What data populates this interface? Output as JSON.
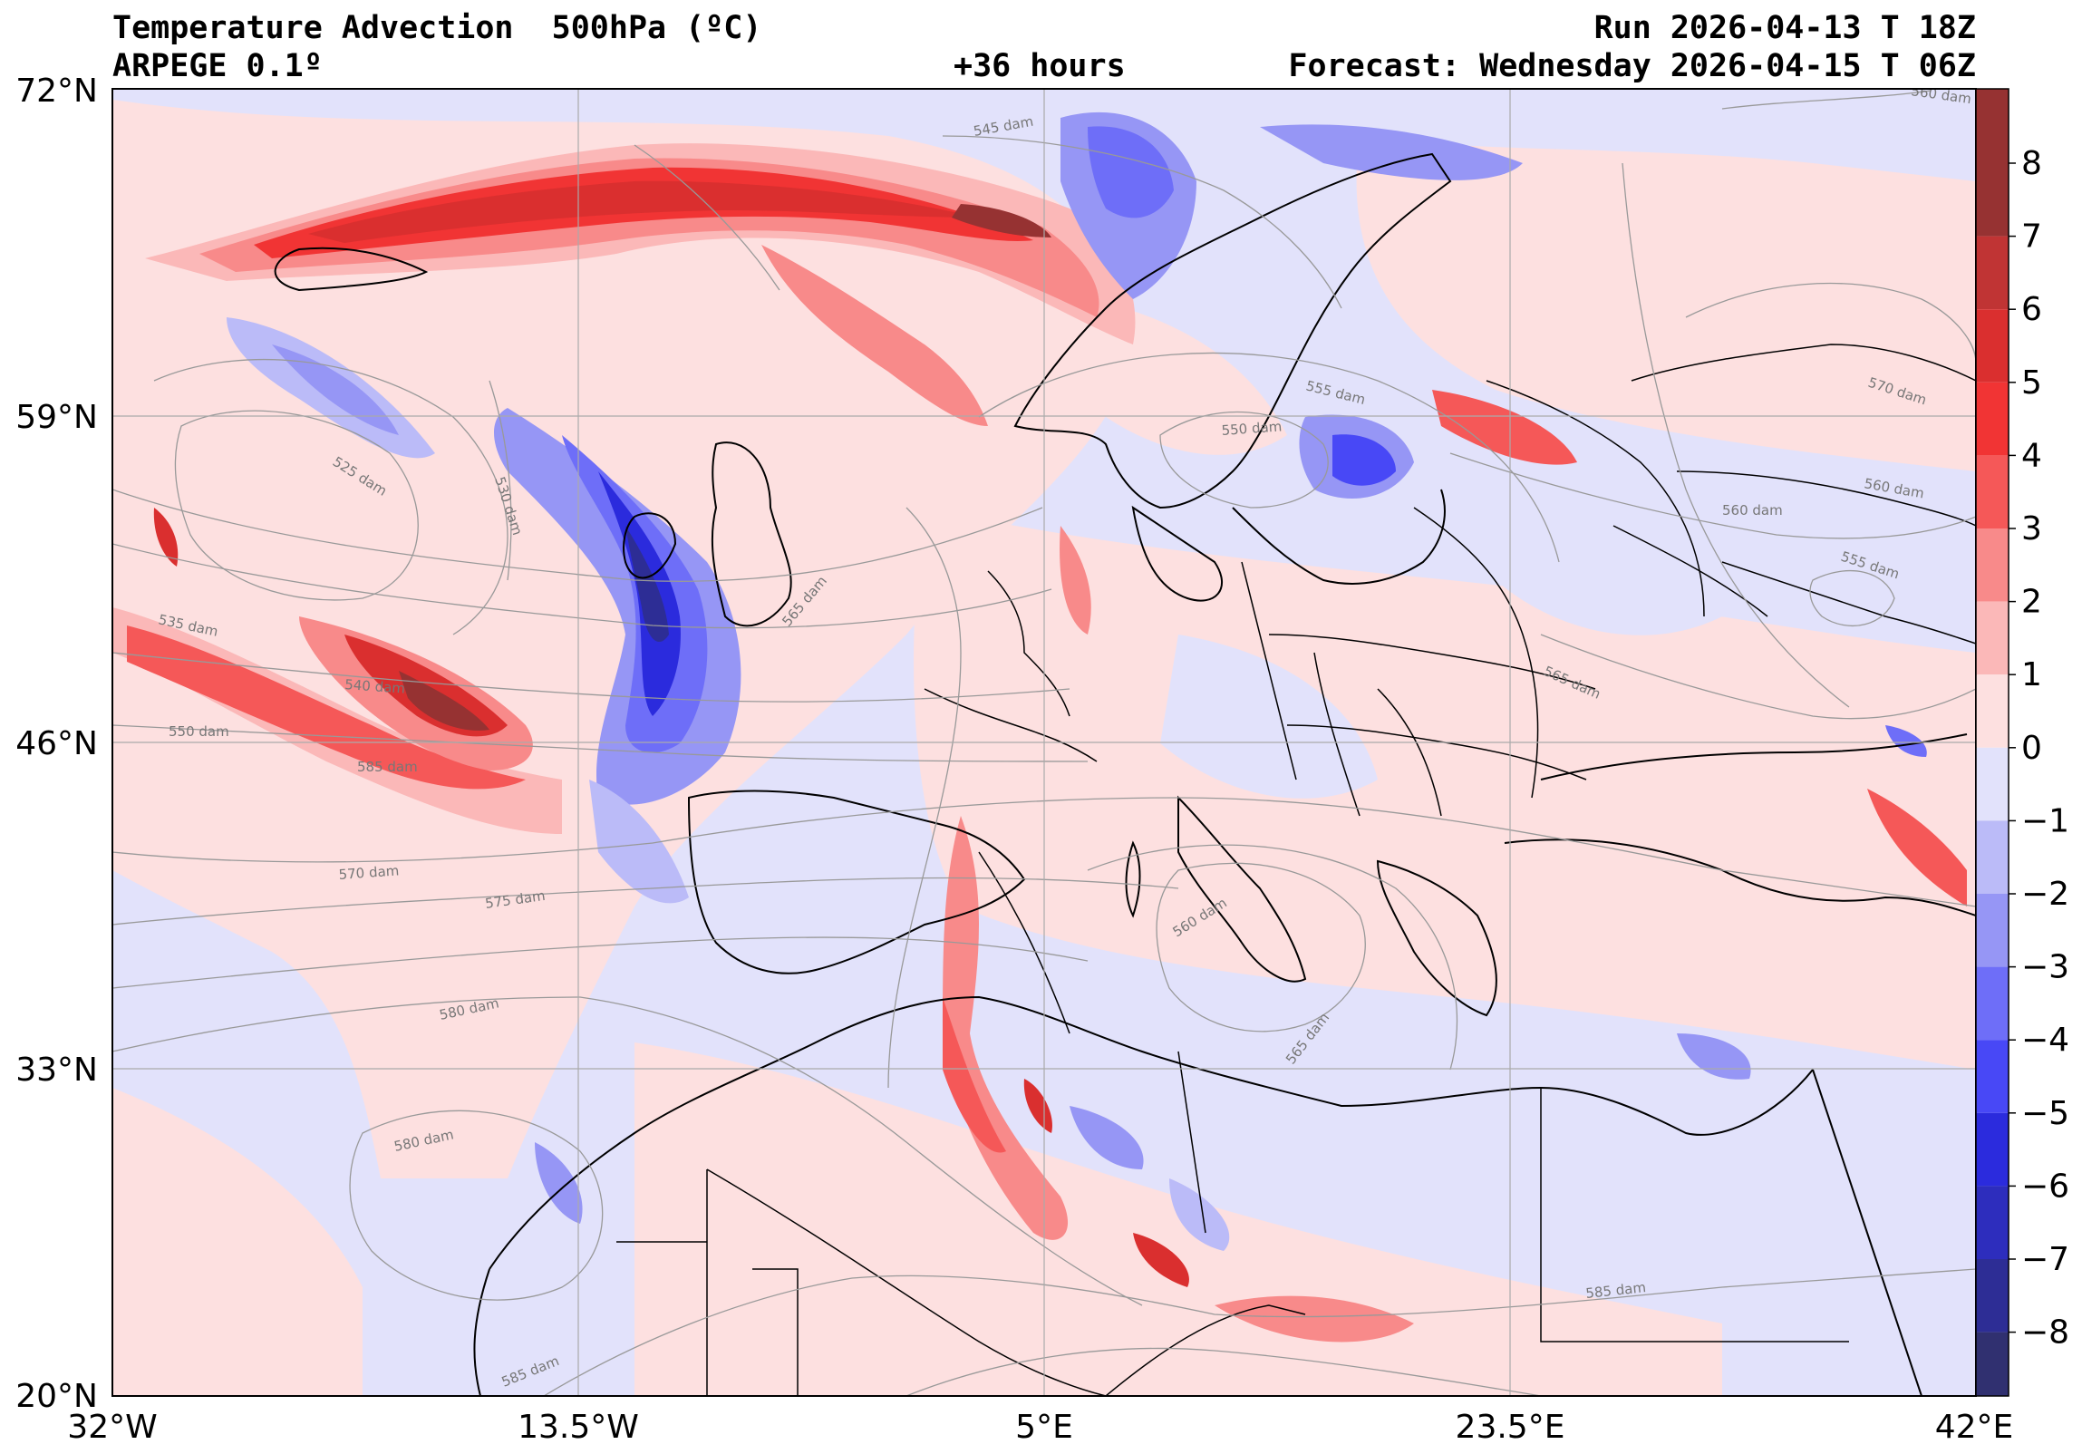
{
  "header": {
    "title": "Temperature Advection  500hPa (ºC)",
    "model": "ARPEGE 0.1º",
    "run": "Run 2026-04-13 T 18Z",
    "lead": "+36 hours",
    "forecast": "Forecast: Wednesday 2026-04-15 T 06Z"
  },
  "map": {
    "lat_ticks": [
      "72°N",
      "59°N",
      "46°N",
      "33°N",
      "20°N"
    ],
    "lon_ticks": [
      "32°W",
      "13.5°W",
      "5°E",
      "23.5°E",
      "42°E"
    ],
    "contour_labels": [
      "545 dam",
      "560 dam",
      "525 dam",
      "530 dam",
      "535 dam",
      "540 dam",
      "550 dam",
      "570 dam",
      "575 dam",
      "580 dam",
      "580 dam",
      "585 dam",
      "555 dam",
      "550 dam",
      "560 dam",
      "565 dam",
      "570 dam",
      "565 dam",
      "560 dam",
      "555 dam",
      "560 dam",
      "565 dam",
      "585 dam",
      "585 dam"
    ]
  },
  "colorbar": {
    "ticks": [
      "8",
      "7",
      "6",
      "5",
      "4",
      "3",
      "2",
      "1",
      "0",
      "−1",
      "−2",
      "−3",
      "−4",
      "−5",
      "−6",
      "−7",
      "−8"
    ],
    "colors_positive": [
      "#fde0e0",
      "#fbb8b8",
      "#f88a8a",
      "#f55858",
      "#f13434",
      "#da2f2f",
      "#c03434",
      "#963232"
    ],
    "colors_negative": [
      "#e2e2fb",
      "#bbbbf8",
      "#9696f5",
      "#6e6ef8",
      "#4848f6",
      "#2b2bdd",
      "#2d2dbd",
      "#2d2d95",
      "#303070"
    ],
    "colors_extreme": {
      "hot": "#963232",
      "cold": "#303070"
    }
  }
}
